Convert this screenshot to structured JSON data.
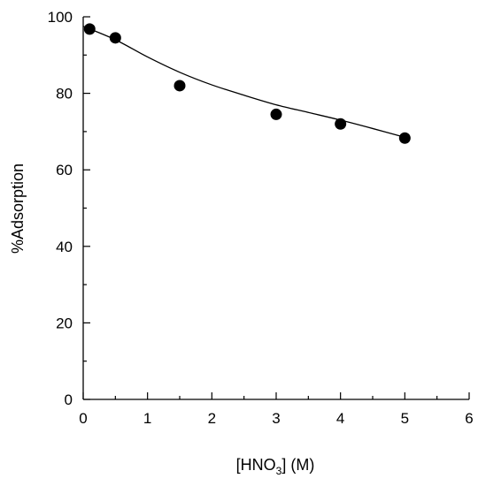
{
  "chart_data": {
    "type": "scatter",
    "title": "",
    "xlabel": "[HNO3] (M)",
    "xlabel_parts": {
      "prefix": "[HNO",
      "subscript": "3",
      "suffix": "] (M)"
    },
    "ylabel": "%Adsorption",
    "xlim": [
      0,
      6
    ],
    "ylim": [
      0,
      100
    ],
    "x_ticks": [
      0,
      1,
      2,
      3,
      4,
      5,
      6
    ],
    "y_ticks": [
      0,
      20,
      40,
      60,
      80,
      100
    ],
    "x_minor_step": 0.5,
    "y_minor_step": 10,
    "grid": false,
    "legend": "none",
    "series": [
      {
        "kind": "points",
        "x": [
          0.1,
          0.5,
          1.5,
          3,
          4,
          5
        ],
        "y": [
          96.8,
          94.5,
          82,
          74.5,
          72,
          68.3
        ],
        "color": "#000000"
      },
      {
        "kind": "fit-curve",
        "x": [
          0,
          0.5,
          1,
          1.5,
          2,
          2.5,
          3,
          3.5,
          4,
          4.5,
          5
        ],
        "y": [
          97.5,
          94,
          89.5,
          85.5,
          82.2,
          79.5,
          77,
          75,
          73,
          70.8,
          68.5
        ],
        "color": "#000000"
      }
    ]
  }
}
